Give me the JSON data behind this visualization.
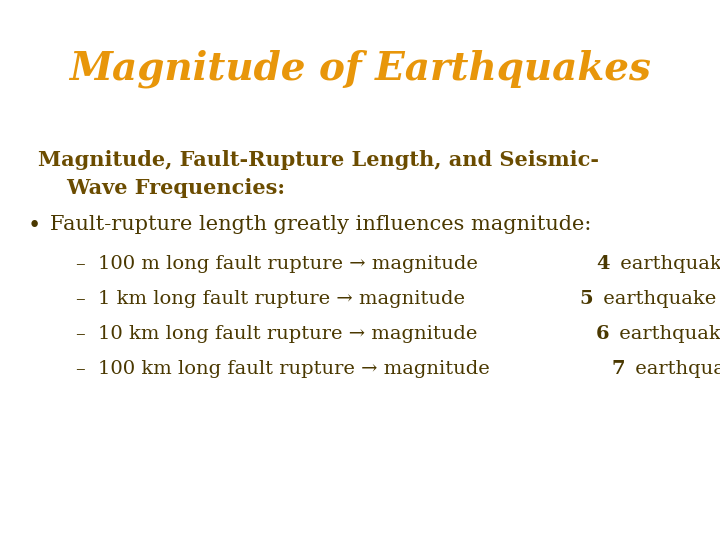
{
  "title": "Magnitude of Earthquakes",
  "title_color": "#E8960A",
  "title_fontsize": 28,
  "title_fontstyle": "italic",
  "title_fontweight": "bold",
  "background_color": "#FFFFFF",
  "heading_color": "#6B4C00",
  "body_color": "#4A3800",
  "heading_text_line1": "Magnitude, Fault-Rupture Length, and Seismic-",
  "heading_text_line2": "    Wave Frequencies:",
  "heading_fontsize": 15,
  "bullet_text": "Fault-rupture length greatly influences magnitude:",
  "bullet_fontsize": 15,
  "sub_fontsize": 14,
  "sub_items_pre": [
    "100 m long fault rupture → magnitude ",
    "1 km long fault rupture → magnitude ",
    "10 km long fault rupture → magnitude ",
    "100 km long fault rupture → magnitude "
  ],
  "sub_items_num": [
    "4",
    "5",
    "6",
    "7"
  ],
  "sub_items_post": [
    " earthquake",
    " earthquake",
    " earthquake",
    " earthquake"
  ]
}
